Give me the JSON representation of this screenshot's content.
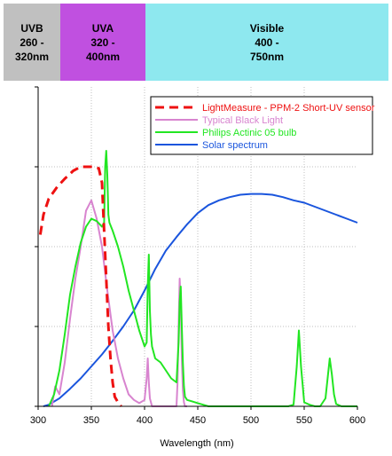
{
  "bands": [
    {
      "label": "UVB\n260 -\n320nm",
      "color": "#c0c0c0",
      "from": 260,
      "to": 320
    },
    {
      "label": "UVA\n320 -\n400nm",
      "color": "#c050e0",
      "from": 320,
      "to": 400
    },
    {
      "label": "Visible\n400 -\n750nm",
      "color": "#8ee8ef",
      "from": 400,
      "to": 750
    }
  ],
  "chart_data": {
    "type": "line",
    "title": "",
    "xlabel": "Wavelength (nm)",
    "ylabel": "",
    "xlim": [
      300,
      600
    ],
    "ylim": [
      0,
      4
    ],
    "xticks": [
      300,
      350,
      400,
      450,
      500,
      550,
      600
    ],
    "yticks": [
      0,
      1,
      2,
      3,
      4
    ],
    "grid": true,
    "legend_position": "top-right",
    "series": [
      {
        "name": "LightMeasure - PPM-2 Short-UV sensor",
        "color": "#ee1111",
        "dash": "10,6",
        "x": [
          302,
          305,
          310,
          318,
          325,
          333,
          340,
          347,
          352,
          357,
          360,
          362,
          364,
          366,
          368,
          370,
          372,
          375,
          378
        ],
        "y": [
          2.15,
          2.4,
          2.6,
          2.75,
          2.85,
          2.95,
          3.0,
          3.0,
          3.0,
          2.98,
          2.8,
          2.2,
          1.6,
          1.0,
          0.6,
          0.3,
          0.12,
          0.05,
          0.0
        ]
      },
      {
        "name": "Typical Black Light",
        "color": "#d884cf",
        "dash": "",
        "x": [
          313,
          316,
          320,
          325,
          330,
          335,
          340,
          345,
          350,
          355,
          360,
          365,
          370,
          375,
          380,
          385,
          390,
          395,
          400,
          402,
          403,
          404,
          405,
          406,
          407,
          410,
          415,
          420,
          425,
          430,
          431,
          432,
          433,
          434,
          435,
          436,
          437,
          438,
          440
        ],
        "y": [
          0.0,
          0.25,
          0.15,
          0.55,
          1.1,
          1.6,
          2.0,
          2.45,
          2.58,
          2.35,
          2.0,
          1.45,
          0.95,
          0.6,
          0.35,
          0.15,
          0.08,
          0.04,
          0.08,
          0.35,
          0.6,
          0.3,
          0.1,
          0.05,
          0.0,
          0.0,
          0.0,
          0.0,
          0.0,
          0.0,
          0.3,
          1.0,
          1.6,
          1.3,
          0.6,
          0.2,
          0.05,
          0.0,
          0.0
        ]
      },
      {
        "name": "Philips Actinic 05 bulb",
        "color": "#22e622",
        "dash": "",
        "x": [
          310,
          315,
          320,
          325,
          330,
          335,
          340,
          345,
          350,
          355,
          360,
          362,
          363,
          364,
          365,
          366,
          367,
          370,
          375,
          380,
          385,
          390,
          395,
          400,
          402,
          403,
          404,
          405,
          406,
          407,
          410,
          415,
          420,
          425,
          430,
          432,
          433,
          434,
          435,
          436,
          437,
          438,
          440,
          445,
          450,
          455,
          460,
          465,
          470,
          480,
          500,
          520,
          535,
          540,
          543,
          545,
          547,
          550,
          555,
          560,
          565,
          570,
          574,
          576,
          578,
          580,
          585,
          590,
          600
        ],
        "y": [
          0.0,
          0.15,
          0.45,
          0.9,
          1.4,
          1.75,
          2.05,
          2.25,
          2.35,
          2.32,
          2.25,
          2.3,
          3.0,
          3.2,
          2.9,
          2.4,
          2.3,
          2.2,
          2.0,
          1.75,
          1.45,
          1.2,
          0.95,
          0.75,
          0.8,
          1.5,
          1.9,
          1.2,
          0.9,
          0.75,
          0.6,
          0.55,
          0.45,
          0.35,
          0.3,
          0.8,
          1.3,
          1.5,
          1.0,
          0.55,
          0.25,
          0.12,
          0.08,
          0.06,
          0.04,
          0.02,
          0.0,
          0.0,
          0.0,
          0.0,
          0.0,
          0.0,
          0.0,
          0.02,
          0.5,
          0.95,
          0.5,
          0.05,
          0.02,
          0.0,
          0.0,
          0.1,
          0.6,
          0.4,
          0.15,
          0.03,
          0.0,
          0.0,
          0.0
        ]
      },
      {
        "name": "Solar spectrum",
        "color": "#1a55dd",
        "dash": "",
        "x": [
          305,
          310,
          320,
          330,
          340,
          350,
          360,
          370,
          380,
          390,
          400,
          410,
          420,
          430,
          440,
          450,
          460,
          470,
          480,
          490,
          500,
          510,
          520,
          530,
          540,
          550,
          560,
          570,
          580,
          590,
          600
        ],
        "y": [
          0.0,
          0.02,
          0.1,
          0.22,
          0.35,
          0.5,
          0.65,
          0.82,
          1.0,
          1.2,
          1.45,
          1.72,
          1.95,
          2.12,
          2.28,
          2.42,
          2.52,
          2.58,
          2.62,
          2.65,
          2.66,
          2.66,
          2.65,
          2.62,
          2.58,
          2.55,
          2.5,
          2.45,
          2.4,
          2.35,
          2.3
        ]
      }
    ]
  }
}
